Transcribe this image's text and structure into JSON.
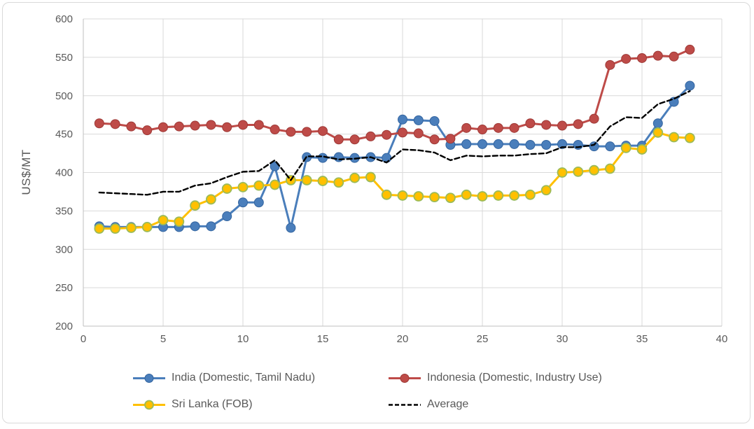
{
  "figure": {
    "y_axis_title": "US$/MT",
    "frame_border_color": "#d9d9d9"
  },
  "colors": {
    "gridline": "#d9d9d9",
    "axis_line": "#bfbfbf",
    "tick_text": "#595959",
    "legend_text": "#595959"
  },
  "axes": {
    "x_ticks": [
      0,
      5,
      10,
      15,
      20,
      25,
      30,
      35,
      40
    ],
    "y_ticks": [
      200,
      250,
      300,
      350,
      400,
      450,
      500,
      550,
      600
    ]
  },
  "chart_data": {
    "type": "line",
    "title": "",
    "xlabel": "",
    "ylabel": "US$/MT",
    "xlim": [
      0,
      40
    ],
    "ylim": [
      200,
      600
    ],
    "grid": true,
    "legend_position": "bottom-two-rows",
    "x": [
      1,
      2,
      3,
      4,
      5,
      6,
      7,
      8,
      9,
      10,
      11,
      12,
      13,
      14,
      15,
      16,
      17,
      18,
      19,
      20,
      21,
      22,
      23,
      24,
      25,
      26,
      27,
      28,
      29,
      30,
      31,
      32,
      33,
      34,
      35,
      36,
      37,
      38
    ],
    "series": [
      {
        "key": "india",
        "name": "India (Domestic, Tamil Nadu)",
        "color": "#4a7ebb",
        "marker_border": "#3465a0",
        "style": "solid",
        "marker": "circle",
        "values": [
          330,
          329,
          329,
          329,
          329,
          329,
          330,
          330,
          343,
          361,
          361,
          408,
          328,
          420,
          419,
          420,
          419,
          420,
          419,
          469,
          468,
          467,
          436,
          437,
          437,
          437,
          437,
          436,
          436,
          437,
          436,
          434,
          434,
          435,
          435,
          464,
          492,
          513
        ]
      },
      {
        "key": "indonesia",
        "name": "Indonesia (Domestic, Industry Use)",
        "color": "#be4b48",
        "marker_border": "#9e3a37",
        "style": "solid",
        "marker": "circle",
        "values": [
          464,
          463,
          460,
          455,
          459,
          460,
          461,
          462,
          459,
          462,
          462,
          456,
          453,
          453,
          454,
          443,
          443,
          447,
          449,
          452,
          451,
          443,
          444,
          458,
          456,
          458,
          458,
          464,
          462,
          461,
          463,
          470,
          540,
          548,
          549,
          552,
          551,
          560
        ]
      },
      {
        "key": "sri_lanka",
        "name": "Sri Lanka (FOB)",
        "color": "#ffc000",
        "marker_border": "#9bbb59",
        "style": "solid",
        "marker": "circle",
        "values": [
          327,
          327,
          328,
          329,
          338,
          336,
          357,
          365,
          379,
          381,
          383,
          384,
          390,
          390,
          389,
          387,
          393,
          394,
          371,
          370,
          369,
          368,
          367,
          371,
          369,
          370,
          370,
          371,
          377,
          400,
          401,
          403,
          405,
          432,
          430,
          452,
          446,
          445
        ]
      },
      {
        "key": "average",
        "name": "Average",
        "color": "#000000",
        "marker_border": "#000000",
        "style": "dashed",
        "marker": "none",
        "values": [
          374,
          373,
          372,
          371,
          375,
          375,
          383,
          386,
          394,
          401,
          402,
          416,
          390,
          421,
          421,
          417,
          418,
          420,
          413,
          430,
          429,
          426,
          416,
          422,
          421,
          422,
          422,
          424,
          425,
          433,
          433,
          436,
          460,
          472,
          471,
          489,
          496,
          506
        ]
      }
    ]
  }
}
